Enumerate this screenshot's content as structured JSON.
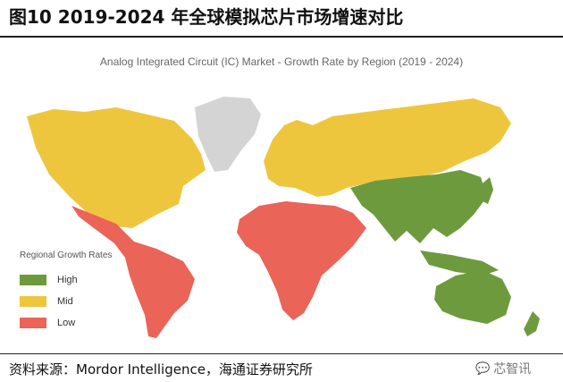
{
  "figure_title": "图10 2019-2024 年全球模拟芯片市场增速对比",
  "map_title": "Analog Integrated Circuit (IC) Market - Growth Rate by Region (2019 - 2024)",
  "legend": {
    "title": "Regional Growth Rates",
    "items": [
      {
        "label": "High",
        "color": "#6e9a3e"
      },
      {
        "label": "Mid",
        "color": "#eec63e"
      },
      {
        "label": "Low",
        "color": "#ea6458"
      }
    ]
  },
  "regions": [
    {
      "name": "Asia-Pacific",
      "level": "High"
    },
    {
      "name": "North America",
      "level": "Mid"
    },
    {
      "name": "Europe & Russia",
      "level": "Mid"
    },
    {
      "name": "Latin America",
      "level": "Low"
    },
    {
      "name": "Middle East & Africa",
      "level": "Low"
    },
    {
      "name": "Greenland",
      "level": "No data"
    }
  ],
  "colors": {
    "no_data": "#d4d4d4"
  },
  "source": "资料来源：Mordor Intelligence，海通证券研究所",
  "watermark": {
    "icon": "wechat-icon",
    "text": "芯智讯"
  }
}
